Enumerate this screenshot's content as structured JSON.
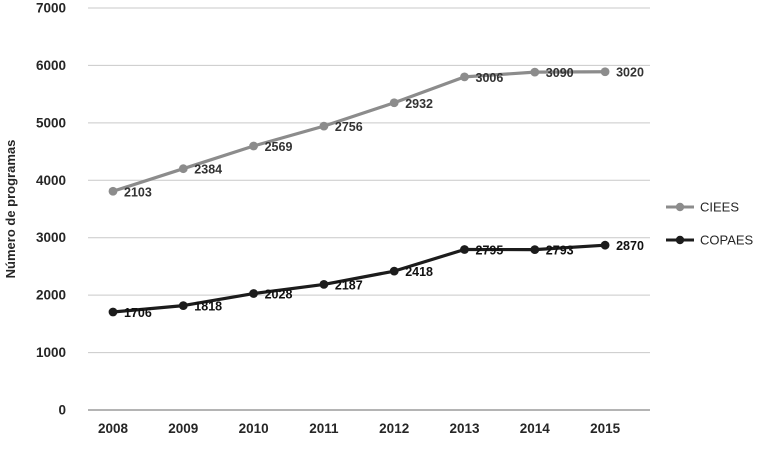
{
  "chart_data": {
    "type": "line",
    "title": "",
    "xlabel": "",
    "ylabel": "Número de programas",
    "ylim": [
      0,
      7000
    ],
    "ytick_interval": 1000,
    "grid": true,
    "legend_position": "right",
    "categories": [
      "2008",
      "2009",
      "2010",
      "2011",
      "2012",
      "2013",
      "2014",
      "2015"
    ],
    "series": [
      {
        "name": "CIEES",
        "color": "#8c8c8c",
        "label_color": "#333333",
        "data_labels": [
          "2103",
          "2384",
          "2569",
          "2756",
          "2932",
          "3006",
          "3090",
          "3020"
        ],
        "values_plotted": [
          3809,
          4202,
          4597,
          4943,
          5350,
          5801,
          5883,
          5890
        ]
      },
      {
        "name": "COPAES",
        "color": "#1c1c1c",
        "label_color": "#111111",
        "data_labels": [
          "1706",
          "1818",
          "2028",
          "2187",
          "2418",
          "2795",
          "2793",
          "2870"
        ],
        "values_plotted": [
          1706,
          1818,
          2028,
          2187,
          2418,
          2795,
          2793,
          2870
        ]
      }
    ],
    "colors": {
      "grid": "#c9c9c9",
      "axis": "#9b9b9b",
      "text": "#262626"
    }
  }
}
